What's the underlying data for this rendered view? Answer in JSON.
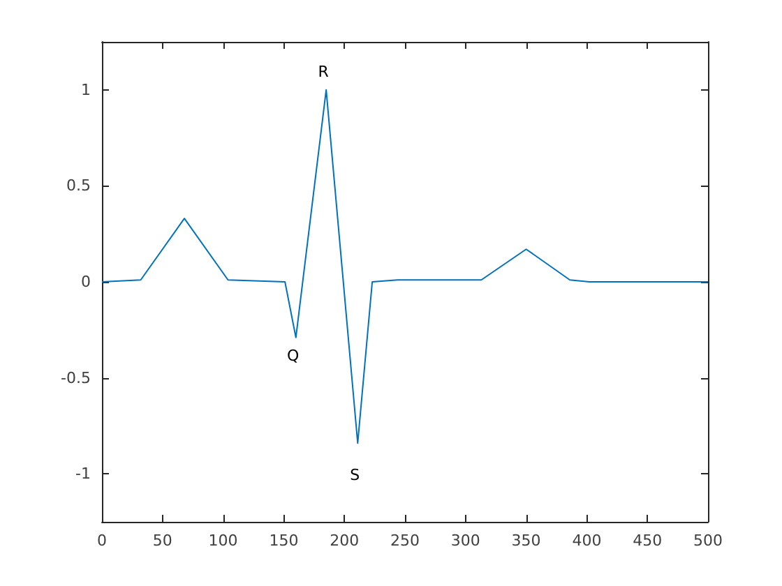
{
  "chart_data": {
    "type": "line",
    "x": [
      0,
      32,
      68,
      104,
      151,
      160,
      185,
      211,
      223,
      244,
      313,
      350,
      386,
      402,
      500
    ],
    "series": [
      {
        "color": "#0072bd",
        "values": [
          0,
          0.01,
          0.33,
          0.01,
          0,
          -0.29,
          1.0,
          -0.84,
          0,
          0.01,
          0.01,
          0.17,
          0.01,
          0,
          0
        ]
      }
    ],
    "xlim": [
      0,
      500
    ],
    "xticks": [
      0,
      50,
      100,
      150,
      200,
      250,
      300,
      350,
      400,
      450,
      500
    ],
    "ylim": [
      -1.25,
      1.25
    ],
    "yticks": [
      -1,
      -0.5,
      0,
      0.5,
      1
    ],
    "annotations": [
      {
        "text": "Q",
        "x": 160,
        "y": -0.29
      },
      {
        "text": "R",
        "x": 185,
        "y": 1.0
      },
      {
        "text": "S",
        "x": 211,
        "y": -0.84
      }
    ],
    "grid": false,
    "marker": "none",
    "line_style": "solid"
  }
}
